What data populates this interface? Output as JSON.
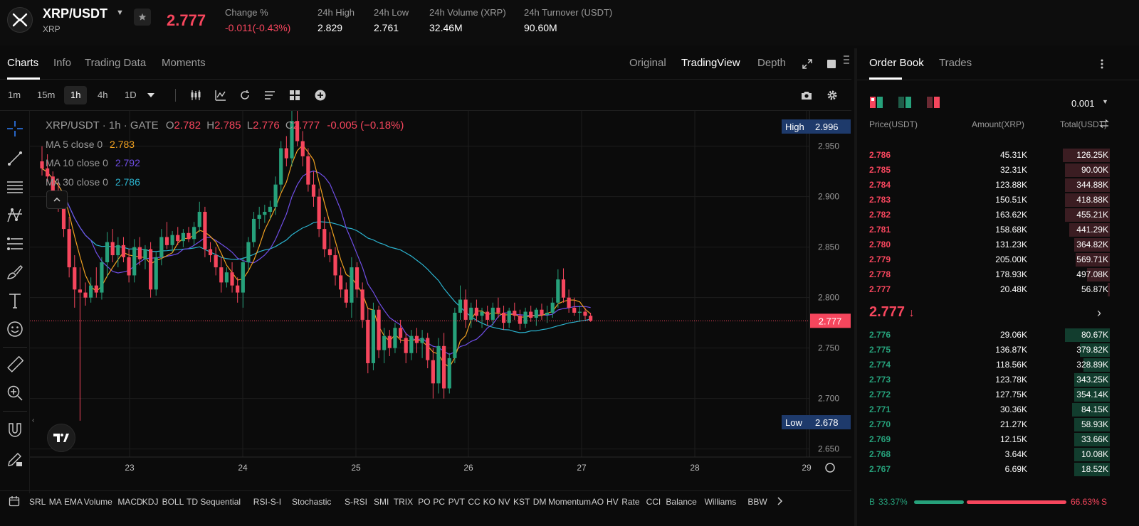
{
  "ticker": {
    "pair": "XRP/USDT",
    "base": "XRP",
    "last_price": "2.777",
    "stats": [
      {
        "label": "Change %",
        "value": "-0.011(-0.43%)",
        "red": true
      },
      {
        "label": "24h High",
        "value": "2.829"
      },
      {
        "label": "24h Low",
        "value": "2.761"
      },
      {
        "label": "24h Volume (XRP)",
        "value": "32.46M"
      },
      {
        "label": "24h Turnover (USDT)",
        "value": "90.60M"
      }
    ]
  },
  "chart_panel": {
    "tabs": [
      "Charts",
      "Info",
      "Trading Data",
      "Moments"
    ],
    "view_tabs": [
      "Original",
      "TradingView",
      "Depth"
    ],
    "timeframes": [
      "1m",
      "15m",
      "1h",
      "4h",
      "1D"
    ],
    "active_timeframe": "1h"
  },
  "legend": {
    "title": "XRP/USDT · 1h · GATE",
    "o_label": "O",
    "o_val": "2.782",
    "h_label": "H",
    "h_val": "2.785",
    "l_label": "L",
    "l_val": "2.776",
    "c_label": "C",
    "c_val": "2.777",
    "change": "-0.005 (−0.18%)",
    "ma5_label": "MA 5 close 0",
    "ma5_val": "2.783",
    "ma10_label": "MA 10 close 0",
    "ma10_val": "2.792",
    "ma30_label": "MA 30 close 0",
    "ma30_val": "2.786"
  },
  "chart_data": {
    "type": "candlestick",
    "x_ticks": [
      "23",
      "24",
      "25",
      "26",
      "27",
      "28",
      "29"
    ],
    "y_ticks": [
      "2.950",
      "2.900",
      "2.850",
      "2.800",
      "2.750",
      "2.700",
      "2.650"
    ],
    "y_range": [
      2.642,
      2.985
    ],
    "high_label": "High",
    "high_value": "2.996",
    "low_label": "Low",
    "low_value": "2.678",
    "current_price": "2.777",
    "series_colors": {
      "up": "#26a17b",
      "down": "#f6465d",
      "ma5": "#f0a020",
      "ma10": "#6f4ee6",
      "ma30": "#2bb3cf"
    },
    "candles": [
      {
        "o": 2.935,
        "h": 2.95,
        "l": 2.921,
        "c": 2.928
      },
      {
        "o": 2.928,
        "h": 2.942,
        "l": 2.915,
        "c": 2.92
      },
      {
        "o": 2.92,
        "h": 2.925,
        "l": 2.895,
        "c": 2.905
      },
      {
        "o": 2.905,
        "h": 2.918,
        "l": 2.885,
        "c": 2.892
      },
      {
        "o": 2.892,
        "h": 2.9,
        "l": 2.86,
        "c": 2.868
      },
      {
        "o": 2.868,
        "h": 2.88,
        "l": 2.82,
        "c": 2.83
      },
      {
        "o": 2.83,
        "h": 2.842,
        "l": 2.79,
        "c": 2.808
      },
      {
        "o": 2.808,
        "h": 2.83,
        "l": 2.678,
        "c": 2.805
      },
      {
        "o": 2.805,
        "h": 2.815,
        "l": 2.792,
        "c": 2.8
      },
      {
        "o": 2.8,
        "h": 2.82,
        "l": 2.795,
        "c": 2.812
      },
      {
        "o": 2.812,
        "h": 2.83,
        "l": 2.8,
        "c": 2.805
      },
      {
        "o": 2.805,
        "h": 2.84,
        "l": 2.798,
        "c": 2.835
      },
      {
        "o": 2.835,
        "h": 2.865,
        "l": 2.82,
        "c": 2.855
      },
      {
        "o": 2.855,
        "h": 2.868,
        "l": 2.835,
        "c": 2.842
      },
      {
        "o": 2.842,
        "h": 2.86,
        "l": 2.83,
        "c": 2.852
      },
      {
        "o": 2.852,
        "h": 2.86,
        "l": 2.835,
        "c": 2.84
      },
      {
        "o": 2.84,
        "h": 2.848,
        "l": 2.815,
        "c": 2.822
      },
      {
        "o": 2.822,
        "h": 2.858,
        "l": 2.815,
        "c": 2.85
      },
      {
        "o": 2.85,
        "h": 2.86,
        "l": 2.832,
        "c": 2.838
      },
      {
        "o": 2.838,
        "h": 2.852,
        "l": 2.828,
        "c": 2.848
      },
      {
        "o": 2.848,
        "h": 2.855,
        "l": 2.8,
        "c": 2.808
      },
      {
        "o": 2.808,
        "h": 2.845,
        "l": 2.802,
        "c": 2.84
      },
      {
        "o": 2.84,
        "h": 2.868,
        "l": 2.832,
        "c": 2.86
      },
      {
        "o": 2.86,
        "h": 2.875,
        "l": 2.848,
        "c": 2.852
      },
      {
        "o": 2.852,
        "h": 2.866,
        "l": 2.845,
        "c": 2.862
      },
      {
        "o": 2.862,
        "h": 2.87,
        "l": 2.852,
        "c": 2.856
      },
      {
        "o": 2.856,
        "h": 2.868,
        "l": 2.85,
        "c": 2.864
      },
      {
        "o": 2.864,
        "h": 2.87,
        "l": 2.855,
        "c": 2.858
      },
      {
        "o": 2.858,
        "h": 2.875,
        "l": 2.852,
        "c": 2.87
      },
      {
        "o": 2.87,
        "h": 2.895,
        "l": 2.865,
        "c": 2.885
      },
      {
        "o": 2.885,
        "h": 2.89,
        "l": 2.84,
        "c": 2.848
      },
      {
        "o": 2.848,
        "h": 2.855,
        "l": 2.835,
        "c": 2.842
      },
      {
        "o": 2.842,
        "h": 2.85,
        "l": 2.822,
        "c": 2.83
      },
      {
        "o": 2.83,
        "h": 2.84,
        "l": 2.805,
        "c": 2.815
      },
      {
        "o": 2.815,
        "h": 2.83,
        "l": 2.81,
        "c": 2.825
      },
      {
        "o": 2.825,
        "h": 2.835,
        "l": 2.805,
        "c": 2.812
      },
      {
        "o": 2.812,
        "h": 2.82,
        "l": 2.795,
        "c": 2.805
      },
      {
        "o": 2.805,
        "h": 2.84,
        "l": 2.79,
        "c": 2.835
      },
      {
        "o": 2.835,
        "h": 2.86,
        "l": 2.828,
        "c": 2.855
      },
      {
        "o": 2.855,
        "h": 2.885,
        "l": 2.85,
        "c": 2.878
      },
      {
        "o": 2.878,
        "h": 2.89,
        "l": 2.868,
        "c": 2.882
      },
      {
        "o": 2.882,
        "h": 2.892,
        "l": 2.874,
        "c": 2.885
      },
      {
        "o": 2.885,
        "h": 2.896,
        "l": 2.878,
        "c": 2.89
      },
      {
        "o": 2.89,
        "h": 2.92,
        "l": 2.882,
        "c": 2.912
      },
      {
        "o": 2.912,
        "h": 2.955,
        "l": 2.905,
        "c": 2.948
      },
      {
        "o": 2.948,
        "h": 2.96,
        "l": 2.93,
        "c": 2.938
      },
      {
        "o": 2.938,
        "h": 2.996,
        "l": 2.93,
        "c": 2.975
      },
      {
        "o": 2.975,
        "h": 2.985,
        "l": 2.95,
        "c": 2.955
      },
      {
        "o": 2.955,
        "h": 2.965,
        "l": 2.93,
        "c": 2.94
      },
      {
        "o": 2.94,
        "h": 2.948,
        "l": 2.905,
        "c": 2.912
      },
      {
        "o": 2.912,
        "h": 2.925,
        "l": 2.89,
        "c": 2.9
      },
      {
        "o": 2.9,
        "h": 2.908,
        "l": 2.86,
        "c": 2.868
      },
      {
        "o": 2.868,
        "h": 2.88,
        "l": 2.84,
        "c": 2.848
      },
      {
        "o": 2.848,
        "h": 2.865,
        "l": 2.835,
        "c": 2.842
      },
      {
        "o": 2.842,
        "h": 2.85,
        "l": 2.812,
        "c": 2.822
      },
      {
        "o": 2.822,
        "h": 2.83,
        "l": 2.8,
        "c": 2.808
      },
      {
        "o": 2.808,
        "h": 2.815,
        "l": 2.79,
        "c": 2.795
      },
      {
        "o": 2.795,
        "h": 2.84,
        "l": 2.78,
        "c": 2.83
      },
      {
        "o": 2.83,
        "h": 2.835,
        "l": 2.8,
        "c": 2.808
      },
      {
        "o": 2.808,
        "h": 2.815,
        "l": 2.77,
        "c": 2.778
      },
      {
        "o": 2.778,
        "h": 2.79,
        "l": 2.725,
        "c": 2.735
      },
      {
        "o": 2.735,
        "h": 2.795,
        "l": 2.728,
        "c": 2.788
      },
      {
        "o": 2.788,
        "h": 2.792,
        "l": 2.74,
        "c": 2.748
      },
      {
        "o": 2.748,
        "h": 2.77,
        "l": 2.735,
        "c": 2.762
      },
      {
        "o": 2.762,
        "h": 2.768,
        "l": 2.742,
        "c": 2.75
      },
      {
        "o": 2.75,
        "h": 2.775,
        "l": 2.745,
        "c": 2.77
      },
      {
        "o": 2.77,
        "h": 2.778,
        "l": 2.755,
        "c": 2.76
      },
      {
        "o": 2.76,
        "h": 2.765,
        "l": 2.735,
        "c": 2.745
      },
      {
        "o": 2.745,
        "h": 2.768,
        "l": 2.738,
        "c": 2.762
      },
      {
        "o": 2.762,
        "h": 2.77,
        "l": 2.745,
        "c": 2.755
      },
      {
        "o": 2.755,
        "h": 2.768,
        "l": 2.74,
        "c": 2.76
      },
      {
        "o": 2.76,
        "h": 2.765,
        "l": 2.73,
        "c": 2.738
      },
      {
        "o": 2.738,
        "h": 2.75,
        "l": 2.7,
        "c": 2.715
      },
      {
        "o": 2.715,
        "h": 2.76,
        "l": 2.705,
        "c": 2.752
      },
      {
        "o": 2.752,
        "h": 2.765,
        "l": 2.7,
        "c": 2.71
      },
      {
        "o": 2.71,
        "h": 2.745,
        "l": 2.705,
        "c": 2.74
      },
      {
        "o": 2.74,
        "h": 2.79,
        "l": 2.735,
        "c": 2.785
      },
      {
        "o": 2.785,
        "h": 2.812,
        "l": 2.778,
        "c": 2.798
      },
      {
        "o": 2.798,
        "h": 2.808,
        "l": 2.77,
        "c": 2.778
      },
      {
        "o": 2.778,
        "h": 2.795,
        "l": 2.77,
        "c": 2.79
      },
      {
        "o": 2.79,
        "h": 2.798,
        "l": 2.776,
        "c": 2.782
      },
      {
        "o": 2.782,
        "h": 2.79,
        "l": 2.77,
        "c": 2.786
      },
      {
        "o": 2.786,
        "h": 2.792,
        "l": 2.772,
        "c": 2.778
      },
      {
        "o": 2.778,
        "h": 2.795,
        "l": 2.772,
        "c": 2.79
      },
      {
        "o": 2.79,
        "h": 2.8,
        "l": 2.78,
        "c": 2.785
      },
      {
        "o": 2.785,
        "h": 2.792,
        "l": 2.768,
        "c": 2.775
      },
      {
        "o": 2.775,
        "h": 2.79,
        "l": 2.77,
        "c": 2.787
      },
      {
        "o": 2.787,
        "h": 2.795,
        "l": 2.778,
        "c": 2.782
      },
      {
        "o": 2.782,
        "h": 2.788,
        "l": 2.768,
        "c": 2.774
      },
      {
        "o": 2.774,
        "h": 2.79,
        "l": 2.77,
        "c": 2.786
      },
      {
        "o": 2.786,
        "h": 2.792,
        "l": 2.776,
        "c": 2.78
      },
      {
        "o": 2.78,
        "h": 2.79,
        "l": 2.772,
        "c": 2.788
      },
      {
        "o": 2.788,
        "h": 2.794,
        "l": 2.778,
        "c": 2.783
      },
      {
        "o": 2.783,
        "h": 2.792,
        "l": 2.775,
        "c": 2.785
      },
      {
        "o": 2.785,
        "h": 2.8,
        "l": 2.78,
        "c": 2.795
      },
      {
        "o": 2.795,
        "h": 2.828,
        "l": 2.79,
        "c": 2.818
      },
      {
        "o": 2.818,
        "h": 2.829,
        "l": 2.795,
        "c": 2.8
      },
      {
        "o": 2.8,
        "h": 2.808,
        "l": 2.785,
        "c": 2.79
      },
      {
        "o": 2.79,
        "h": 2.8,
        "l": 2.782,
        "c": 2.785
      },
      {
        "o": 2.785,
        "h": 2.792,
        "l": 2.776,
        "c": 2.786
      },
      {
        "o": 2.786,
        "h": 2.79,
        "l": 2.778,
        "c": 2.782
      },
      {
        "o": 2.782,
        "h": 2.785,
        "l": 2.776,
        "c": 2.777
      }
    ]
  },
  "drawing_tools": [
    "crosshair-icon",
    "trendline-icon",
    "horizontal-lines-icon",
    "pattern-icon",
    "fib-icon",
    "brush-icon",
    "text-tool-icon",
    "emoji-icon",
    "ruler-icon",
    "zoom-in-icon",
    "magnet-icon",
    "pencil-lock-icon"
  ],
  "indicators": [
    "SRL",
    "MA",
    "EMA",
    "Volume",
    "MACD",
    "KDJ",
    "BOLL",
    "TD Sequential",
    "RSI-S-I",
    "Stochastic",
    "S-RSI",
    "SMI",
    "TRIX",
    "PO",
    "PC",
    "PVT",
    "CC",
    "KO",
    "NV",
    "KST",
    "DM",
    "Momentum",
    "AO",
    "HV",
    "Rate",
    "CCI",
    "Balance",
    "Williams",
    "BBW"
  ],
  "order_book": {
    "tabs": [
      "Order Book",
      "Trades"
    ],
    "precision": "0.001",
    "headers": {
      "price": "Price(USDT)",
      "amount": "Amount(XRP)",
      "total": "Total(USDT)"
    },
    "asks": [
      {
        "price": "2.786",
        "amount": "45.31K",
        "total": "126.25K",
        "depth": 0.63
      },
      {
        "price": "2.785",
        "amount": "32.31K",
        "total": "90.00K",
        "depth": 0.6
      },
      {
        "price": "2.784",
        "amount": "123.88K",
        "total": "344.88K",
        "depth": 0.6
      },
      {
        "price": "2.783",
        "amount": "150.51K",
        "total": "418.88K",
        "depth": 0.6
      },
      {
        "price": "2.782",
        "amount": "163.62K",
        "total": "455.21K",
        "depth": 0.6
      },
      {
        "price": "2.781",
        "amount": "158.68K",
        "total": "441.29K",
        "depth": 0.54
      },
      {
        "price": "2.780",
        "amount": "131.23K",
        "total": "364.82K",
        "depth": 0.48
      },
      {
        "price": "2.779",
        "amount": "205.00K",
        "total": "569.71K",
        "depth": 0.46
      },
      {
        "price": "2.778",
        "amount": "178.93K",
        "total": "497.08K",
        "depth": 0.3
      },
      {
        "price": "2.777",
        "amount": "20.48K",
        "total": "56.87K",
        "depth": 0.03
      }
    ],
    "mid_price": "2.777",
    "bids": [
      {
        "price": "2.776",
        "amount": "29.06K",
        "total": "80.67K",
        "depth": 0.6
      },
      {
        "price": "2.775",
        "amount": "136.87K",
        "total": "379.82K",
        "depth": 0.4
      },
      {
        "price": "2.774",
        "amount": "118.56K",
        "total": "328.89K",
        "depth": 0.35
      },
      {
        "price": "2.773",
        "amount": "123.78K",
        "total": "343.25K",
        "depth": 0.48
      },
      {
        "price": "2.772",
        "amount": "127.75K",
        "total": "354.14K",
        "depth": 0.48
      },
      {
        "price": "2.771",
        "amount": "30.36K",
        "total": "84.15K",
        "depth": 0.5
      },
      {
        "price": "2.770",
        "amount": "21.27K",
        "total": "58.93K",
        "depth": 0.48
      },
      {
        "price": "2.769",
        "amount": "12.15K",
        "total": "33.66K",
        "depth": 0.48
      },
      {
        "price": "2.768",
        "amount": "3.64K",
        "total": "10.08K",
        "depth": 0.48
      },
      {
        "price": "2.767",
        "amount": "6.69K",
        "total": "18.52K",
        "depth": 0.48
      }
    ],
    "buy_ratio_label": "B",
    "buy_ratio": "33.37%",
    "sell_ratio": "66.63%",
    "sell_ratio_label": "S",
    "buy_fraction": 0.3337
  }
}
